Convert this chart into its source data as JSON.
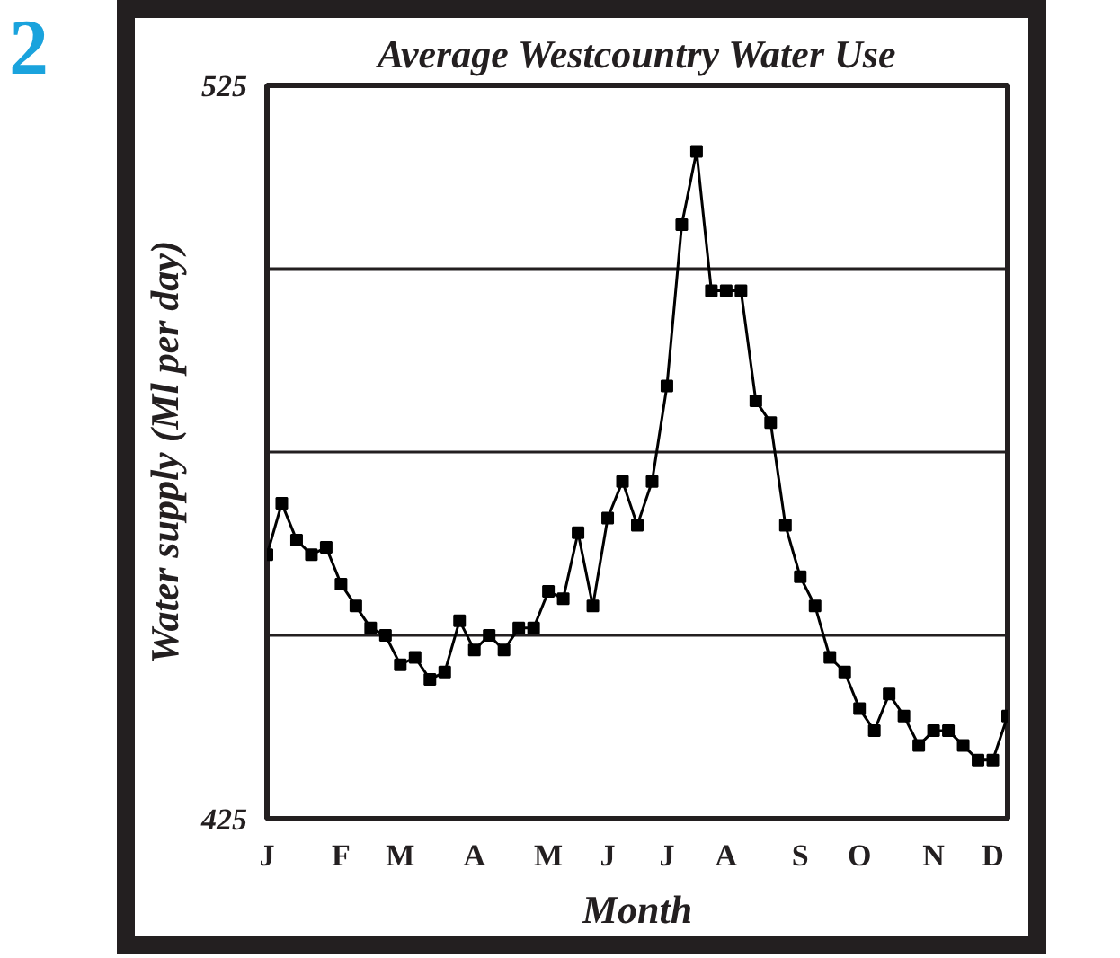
{
  "chart_data": {
    "type": "line",
    "title": "Average Westcountry Water Use",
    "xlabel": "Month",
    "ylabel": "Water supply (Ml per day)",
    "annotations": [
      "2"
    ],
    "categories": [
      "J",
      null,
      null,
      null,
      null,
      "F",
      null,
      null,
      null,
      "M",
      null,
      null,
      null,
      null,
      "A",
      null,
      null,
      null,
      null,
      "M",
      null,
      null,
      null,
      "J",
      null,
      null,
      null,
      "J",
      null,
      null,
      null,
      "A",
      null,
      null,
      null,
      null,
      "S",
      null,
      null,
      null,
      "O",
      null,
      null,
      null,
      null,
      "N",
      null,
      null,
      null,
      "D",
      null
    ],
    "series": [
      {
        "color": "#000000",
        "values": [
          461,
          468,
          463,
          461,
          462,
          457,
          454,
          451,
          450,
          446,
          447,
          444,
          445,
          452,
          448,
          450,
          448,
          451,
          451,
          456,
          455,
          464,
          454,
          466,
          471,
          465,
          471,
          484,
          506,
          516,
          497,
          497,
          497,
          482,
          479,
          465,
          458,
          454,
          447,
          445,
          440,
          437,
          442,
          439,
          435,
          437,
          437,
          435,
          433,
          433,
          439
        ]
      }
    ],
    "ylim": [
      425,
      525
    ],
    "yticks": [
      425,
      {
        "value": 450,
        "label": null
      },
      {
        "value": 475,
        "label": null
      },
      {
        "value": 500,
        "label": null
      },
      525
    ],
    "grid": "y",
    "marker": "square",
    "line_style": "solid"
  }
}
